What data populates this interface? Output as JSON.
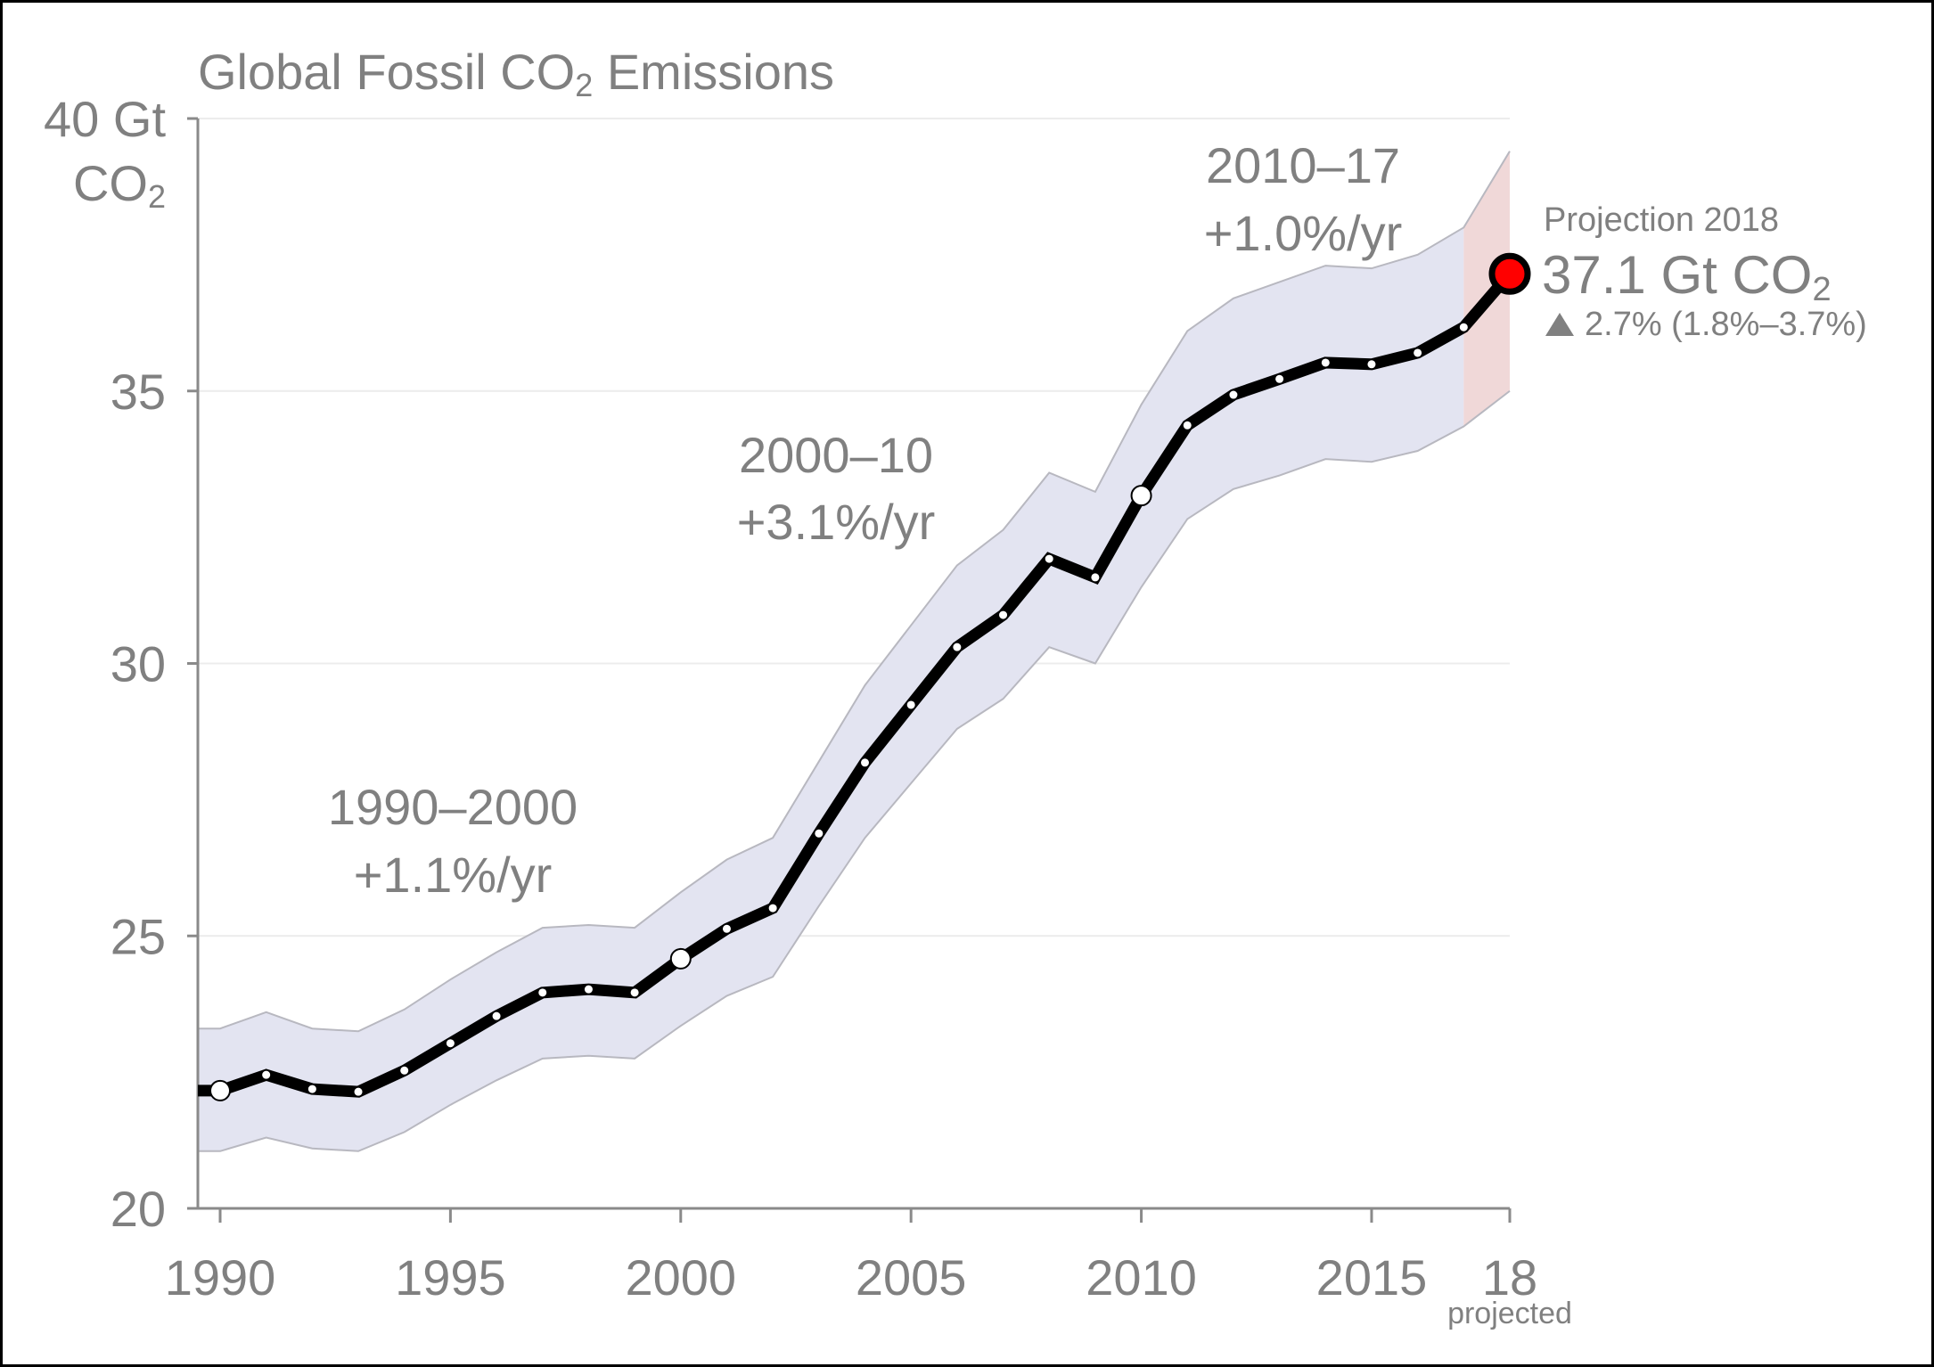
{
  "chart_data": {
    "type": "line",
    "title": "Global Fossil CO₂ Emissions",
    "title_parts": {
      "before": "Global Fossil CO",
      "sub": "2",
      "after": " Emissions"
    },
    "ylabel": "Gt CO₂",
    "ylabel_parts": {
      "top": "40 Gt",
      "bottom_main": "CO",
      "bottom_sub": "2"
    },
    "xlabel": "",
    "ylim": [
      20,
      40
    ],
    "xlim": [
      1989.5,
      2018
    ],
    "y_ticks": [
      20,
      25,
      30,
      35,
      40
    ],
    "y_tick_labels": [
      "20",
      "25",
      "30",
      "35",
      "40 Gt"
    ],
    "x_ticks": [
      1990,
      1995,
      2000,
      2005,
      2010,
      2015,
      2018
    ],
    "x_tick_labels": [
      "1990",
      "1995",
      "2000",
      "2005",
      "2010",
      "2015",
      "18"
    ],
    "x_tick_sublabel": "projected",
    "grid": true,
    "legend": "none",
    "series": [
      {
        "name": "Global fossil CO2 emissions",
        "color": "#000000",
        "x": [
          1990,
          1991,
          1992,
          1993,
          1994,
          1995,
          1996,
          1997,
          1998,
          1999,
          2000,
          2001,
          2002,
          2003,
          2004,
          2005,
          2006,
          2007,
          2008,
          2009,
          2010,
          2011,
          2012,
          2013,
          2014,
          2015,
          2016,
          2017,
          2018
        ],
        "values": [
          22.16,
          22.45,
          22.19,
          22.14,
          22.53,
          23.03,
          23.53,
          23.96,
          24.02,
          23.96,
          24.58,
          25.13,
          25.51,
          26.88,
          28.18,
          29.24,
          30.3,
          30.89,
          31.92,
          31.58,
          33.08,
          34.37,
          34.93,
          35.22,
          35.52,
          35.49,
          35.7,
          36.17,
          37.15
        ],
        "highlight_years": [
          1990,
          2000,
          2010
        ],
        "projected_year": 2018
      }
    ],
    "uncertainty_band": {
      "color": "#e3e4f1",
      "projected_color": "#f0d8d8",
      "upper": [
        23.3,
        23.6,
        23.3,
        23.25,
        23.65,
        24.2,
        24.7,
        25.15,
        25.2,
        25.15,
        25.8,
        26.4,
        26.8,
        28.2,
        29.6,
        30.7,
        31.8,
        32.45,
        33.5,
        33.15,
        34.75,
        36.1,
        36.7,
        37.0,
        37.3,
        37.25,
        37.5,
        38.0,
        39.4
      ],
      "lower": [
        21.05,
        21.3,
        21.1,
        21.05,
        21.4,
        21.9,
        22.35,
        22.75,
        22.8,
        22.75,
        23.35,
        23.9,
        24.25,
        25.55,
        26.8,
        27.8,
        28.8,
        29.35,
        30.3,
        30.0,
        31.4,
        32.65,
        33.2,
        33.45,
        33.75,
        33.7,
        33.9,
        34.35,
        35.0
      ]
    },
    "annotations": [
      {
        "period": "1990–2000",
        "rate": "+1.1%/yr"
      },
      {
        "period": "2000–10",
        "rate": "+3.1%/yr"
      },
      {
        "period": "2010–17",
        "rate": "+1.0%/yr"
      }
    ],
    "projection": {
      "label": "Projection 2018",
      "value_text": "37.1 Gt CO",
      "value_sub": "2",
      "change_icon": "up-triangle-icon",
      "change_text": "2.7% (1.8%–3.7%)",
      "marker_color": "#ff0000"
    }
  }
}
